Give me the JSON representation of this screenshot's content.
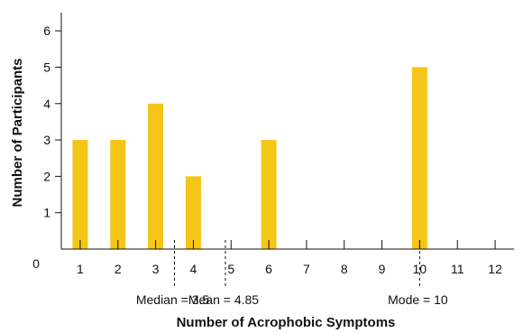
{
  "chart_data": {
    "type": "bar",
    "title": "",
    "xlabel": "Number of Acrophobic Symptoms",
    "ylabel": "Number of Participants",
    "categories": [
      "1",
      "2",
      "3",
      "4",
      "5",
      "6",
      "7",
      "8",
      "9",
      "10",
      "11",
      "12"
    ],
    "values": [
      3,
      3,
      4,
      2,
      0,
      3,
      0,
      0,
      0,
      5,
      0,
      0
    ],
    "xlim": [
      0.5,
      12.5
    ],
    "ylim": [
      0,
      6.5
    ],
    "y_ticks": [
      1,
      2,
      3,
      4,
      5,
      6
    ],
    "y_zero_label": "0",
    "grid": false,
    "bar_color": "#F5C518",
    "annotations": [
      {
        "x": 3.5,
        "label": "Median = 3.5"
      },
      {
        "x": 4.85,
        "label": "Mean = 4.85"
      },
      {
        "x": 10,
        "label": "Mode = 10"
      }
    ]
  }
}
